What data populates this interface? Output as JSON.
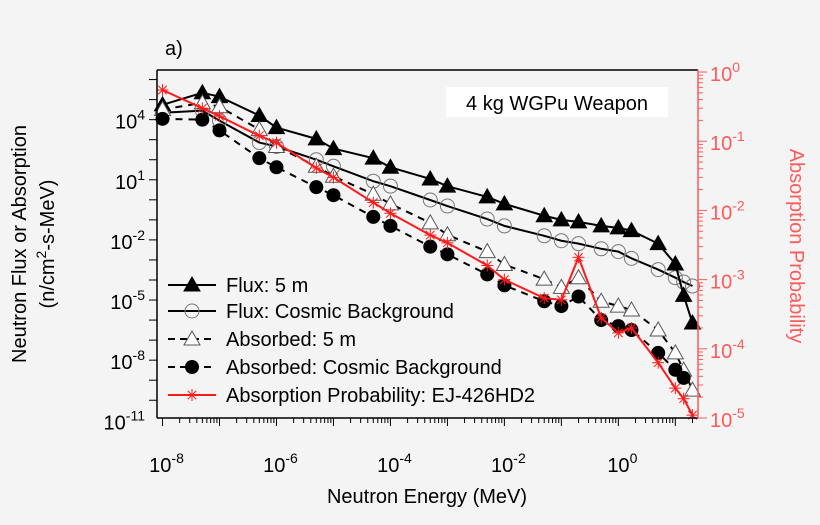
{
  "chart_data": {
    "type": "line",
    "panel_label": "a)",
    "annotation": "4 kg WGPu Weapon",
    "xlabel": "Neutron Energy (MeV)",
    "ylabel_line1": "Neutron Flux or Absorption",
    "ylabel_line2": "(n/cm",
    "ylabel_sup": "2",
    "ylabel_line2_end": "-s-MeV)",
    "y2label": "Absorption Probability",
    "xscale": "log",
    "yscale": "log",
    "y2scale": "log",
    "xlim": [
      8e-09,
      25
    ],
    "ylim": [
      1.3e-11,
      3000000.0
    ],
    "y2lim": [
      1e-05,
      1.07
    ],
    "grid": false,
    "legend_placement": "bottom-left",
    "x_ticks": [
      {
        "v": 1e-08,
        "exp": "-8"
      },
      {
        "v": 1e-06,
        "exp": "-6"
      },
      {
        "v": 0.0001,
        "exp": "-4"
      },
      {
        "v": 0.01,
        "exp": "-2"
      },
      {
        "v": 1,
        "exp": "0"
      }
    ],
    "y_ticks": [
      {
        "v": 10000.0,
        "exp": "4"
      },
      {
        "v": 10.0,
        "exp": "1"
      },
      {
        "v": 0.01,
        "exp": "-2"
      },
      {
        "v": 1e-05,
        "exp": "-5"
      },
      {
        "v": 1e-08,
        "exp": "-8"
      },
      {
        "v": 1e-11,
        "exp": "-11"
      }
    ],
    "y2_ticks": [
      {
        "v": 1,
        "exp": "0"
      },
      {
        "v": 0.1,
        "exp": "-1"
      },
      {
        "v": 0.01,
        "exp": "-2"
      },
      {
        "v": 0.001,
        "exp": "-3"
      },
      {
        "v": 0.0001,
        "exp": "-4"
      },
      {
        "v": 1e-05,
        "exp": "-5"
      }
    ],
    "tick_base": "10",
    "colors": {
      "black": "#000000",
      "gray": "#777777",
      "red": "#ff1a1a",
      "right_axis": "#ff5a5a"
    },
    "x": [
      1e-08,
      5e-08,
      1e-07,
      5e-07,
      1e-06,
      5e-06,
      1e-05,
      5e-05,
      0.0001,
      0.0005,
      0.001,
      0.005,
      0.01,
      0.05,
      0.1,
      0.2,
      0.5,
      1,
      1.7,
      5,
      10,
      14,
      20
    ],
    "series": [
      {
        "name": "Flux: 5 m",
        "axis": "left",
        "marker": "triangle-filled",
        "line": "solid",
        "color": "#000000",
        "values": [
          55000.0,
          220000.0,
          140000.0,
          16000.0,
          4000.0,
          1100.0,
          360.0,
          120.0,
          42,
          11,
          4.8,
          1.4,
          0.63,
          0.16,
          0.1,
          0.079,
          0.05,
          0.04,
          0.029,
          0.0065,
          0.00063,
          1.7e-05,
          7.1e-07
        ]
      },
      {
        "name": "Flux: Cosmic Background",
        "axis": "left",
        "marker": "circle-open",
        "line": "solid",
        "color": "#000000",
        "values": [
          22000.0,
          28000.0,
          8900.0,
          720.0,
          460.0,
          100,
          47,
          8.5,
          4.8,
          0.98,
          0.49,
          0.11,
          0.05,
          0.016,
          0.0091,
          0.0065,
          0.0036,
          0.0026,
          0.0012,
          0.00033,
          0.00013,
          7.9e-05,
          5e-05
        ]
      },
      {
        "name": "Absorbed: 5 m",
        "axis": "left",
        "marker": "triangle-open",
        "line": "dashed",
        "color": "#000000",
        "values": [
          32000.0,
          69000.0,
          44000.0,
          3200.0,
          460.0,
          47,
          15,
          1.9,
          0.63,
          0.071,
          0.018,
          0.0026,
          0.00059,
          0.00011,
          4.3e-05,
          0.00013,
          8.7e-06,
          5e-06,
          3.2e-06,
          3.2e-07,
          2.3e-08,
          3.2e-09,
          3.2e-10
        ]
      },
      {
        "name": "Absorbed: Cosmic Background",
        "axis": "left",
        "marker": "circle-filled",
        "line": "dashed",
        "color": "#000000",
        "values": [
          11000.0,
          10000.0,
          2900.0,
          120.0,
          42,
          4.3,
          1.7,
          0.14,
          0.05,
          0.0046,
          0.0019,
          0.00019,
          5.4e-05,
          8.7e-06,
          5e-06,
          1.5e-05,
          1e-06,
          5e-07,
          3.2e-07,
          2.3e-08,
          3.3e-09,
          1.3e-09,
          null
        ]
      },
      {
        "name": "Absorption Probability: EJ-426HD2",
        "axis": "right",
        "marker": "asterisk",
        "line": "solid",
        "color": "#ff1a1a",
        "values": [
          0.55,
          0.3,
          0.23,
          0.12,
          0.095,
          0.041,
          0.03,
          0.013,
          0.0091,
          0.0044,
          0.0034,
          0.0016,
          0.001,
          0.00054,
          0.00051,
          0.0021,
          0.00028,
          0.00017,
          0.0002,
          6.3e-05,
          2.7e-05,
          1.9e-05,
          1.1e-05
        ]
      }
    ]
  }
}
